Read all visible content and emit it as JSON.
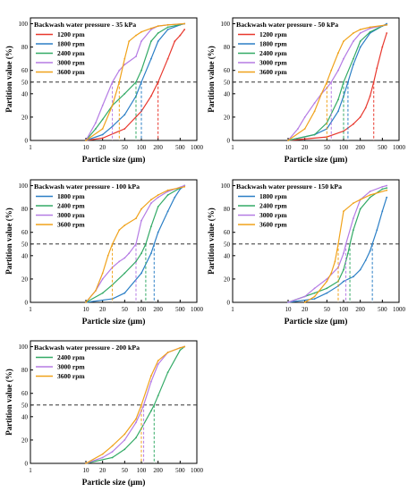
{
  "chart_data": [
    {
      "type": "line",
      "title": "Backwash water pressure - 35 kPa",
      "xlabel": "Particle size (μm)",
      "ylabel": "Partition value (%)",
      "xscale": "log",
      "xlim": [
        1,
        1000
      ],
      "ylim": [
        0,
        105
      ],
      "xticks": [
        "1",
        "10",
        "20",
        "50",
        "100",
        "200",
        "500",
        "1000"
      ],
      "yticks": [
        "0",
        "20",
        "40",
        "50",
        "60",
        "80",
        "100"
      ],
      "reference_line_y": 50,
      "legend": "top-left",
      "series": [
        {
          "name": "1200 rpm",
          "color": "#e8382e",
          "d50": 200,
          "x": [
            10,
            20,
            50,
            100,
            150,
            200,
            300,
            400,
            500,
            600
          ],
          "y": [
            0,
            2,
            10,
            25,
            38,
            50,
            70,
            85,
            90,
            95
          ]
        },
        {
          "name": "1800 rpm",
          "color": "#2b7fc6",
          "d50": 100,
          "x": [
            10,
            20,
            30,
            50,
            80,
            100,
            150,
            200,
            300,
            500,
            600
          ],
          "y": [
            0,
            5,
            12,
            22,
            38,
            50,
            70,
            85,
            95,
            99,
            100
          ]
        },
        {
          "name": "2400 rpm",
          "color": "#33aa66",
          "d50": 80,
          "x": [
            10,
            15,
            20,
            30,
            50,
            80,
            100,
            150,
            200,
            300,
            600
          ],
          "y": [
            0,
            10,
            18,
            30,
            40,
            50,
            60,
            85,
            92,
            97,
            100
          ]
        },
        {
          "name": "3000 rpm",
          "color": "#b57ce4",
          "d50": 30,
          "x": [
            10,
            15,
            20,
            30,
            40,
            50,
            80,
            100,
            150,
            200,
            300,
            600
          ],
          "y": [
            0,
            15,
            30,
            50,
            60,
            65,
            72,
            85,
            95,
            98,
            99,
            100
          ]
        },
        {
          "name": "3600 rpm",
          "color": "#f0a21a",
          "d50": 40,
          "x": [
            10,
            20,
            30,
            40,
            50,
            60,
            80,
            100,
            150,
            200,
            300,
            600
          ],
          "y": [
            0,
            10,
            30,
            50,
            70,
            85,
            90,
            93,
            96,
            98,
            99,
            100
          ]
        }
      ]
    },
    {
      "type": "line",
      "title": "Backwash water pressure - 50 kPa",
      "xlabel": "Particle size (μm)",
      "ylabel": "Partition value (%)",
      "xscale": "log",
      "xlim": [
        1,
        1000
      ],
      "ylim": [
        0,
        105
      ],
      "xticks": [
        "1",
        "10",
        "20",
        "50",
        "100",
        "200",
        "500",
        "1000"
      ],
      "yticks": [
        "0",
        "20",
        "40",
        "50",
        "60",
        "80",
        "100"
      ],
      "reference_line_y": 50,
      "legend": "top-left",
      "series": [
        {
          "name": "1200 rpm",
          "color": "#e8382e",
          "d50": 350,
          "x": [
            10,
            50,
            100,
            150,
            200,
            250,
            300,
            350,
            400,
            500,
            600
          ],
          "y": [
            0,
            3,
            8,
            14,
            20,
            28,
            38,
            50,
            62,
            80,
            92
          ]
        },
        {
          "name": "1800 rpm",
          "color": "#2b7fc6",
          "d50": 120,
          "x": [
            10,
            30,
            50,
            80,
            100,
            120,
            150,
            200,
            300,
            500,
            600
          ],
          "y": [
            0,
            5,
            10,
            25,
            38,
            50,
            65,
            80,
            92,
            98,
            100
          ]
        },
        {
          "name": "2400 rpm",
          "color": "#33aa66",
          "d50": 100,
          "x": [
            10,
            30,
            50,
            80,
            100,
            150,
            200,
            300,
            500,
            600
          ],
          "y": [
            0,
            5,
            15,
            35,
            50,
            70,
            85,
            93,
            98,
            99
          ]
        },
        {
          "name": "3000 rpm",
          "color": "#b57ce4",
          "d50": 60,
          "x": [
            10,
            15,
            20,
            30,
            40,
            50,
            60,
            80,
            100,
            150,
            200,
            300,
            600
          ],
          "y": [
            0,
            10,
            20,
            32,
            40,
            45,
            50,
            60,
            70,
            85,
            92,
            96,
            99
          ]
        },
        {
          "name": "3600 rpm",
          "color": "#f0a21a",
          "d50": 50,
          "x": [
            10,
            20,
            30,
            40,
            50,
            60,
            80,
            100,
            150,
            200,
            300,
            600
          ],
          "y": [
            0,
            10,
            25,
            40,
            50,
            60,
            75,
            85,
            92,
            95,
            97,
            99
          ]
        }
      ]
    },
    {
      "type": "line",
      "title": "Backwash water pressure - 100 kPa",
      "xlabel": "Particle size (μm)",
      "ylabel": "Partition value (%)",
      "xscale": "log",
      "xlim": [
        1,
        1000
      ],
      "ylim": [
        0,
        105
      ],
      "xticks": [
        "1",
        "10",
        "20",
        "50",
        "100",
        "200",
        "500",
        "1000"
      ],
      "yticks": [
        "0",
        "20",
        "40",
        "50",
        "60",
        "80",
        "100"
      ],
      "reference_line_y": 50,
      "legend": "top-left",
      "series": [
        {
          "name": "1800 rpm",
          "color": "#2b7fc6",
          "d50": 170,
          "x": [
            10,
            30,
            50,
            100,
            150,
            170,
            200,
            300,
            400,
            500,
            600
          ],
          "y": [
            0,
            3,
            8,
            25,
            42,
            50,
            60,
            78,
            90,
            97,
            100
          ]
        },
        {
          "name": "2400 rpm",
          "color": "#33aa66",
          "d50": 120,
          "x": [
            10,
            20,
            30,
            50,
            80,
            100,
            120,
            150,
            200,
            300,
            500,
            600
          ],
          "y": [
            0,
            8,
            15,
            25,
            35,
            42,
            50,
            65,
            82,
            92,
            98,
            100
          ]
        },
        {
          "name": "3000 rpm",
          "color": "#b57ce4",
          "d50": 80,
          "x": [
            10,
            15,
            20,
            30,
            40,
            50,
            60,
            80,
            100,
            150,
            200,
            300,
            600
          ],
          "y": [
            0,
            10,
            20,
            30,
            35,
            38,
            42,
            50,
            70,
            85,
            90,
            95,
            100
          ]
        },
        {
          "name": "3600 rpm",
          "color": "#f0a21a",
          "d50": 30,
          "x": [
            10,
            15,
            20,
            25,
            30,
            40,
            50,
            80,
            100,
            150,
            200,
            300,
            600
          ],
          "y": [
            0,
            10,
            25,
            40,
            50,
            62,
            66,
            72,
            80,
            88,
            92,
            96,
            99
          ]
        }
      ]
    },
    {
      "type": "line",
      "title": "Backwash water pressure - 150 kPa",
      "xlabel": "Particle size (μm)",
      "ylabel": "Partition value (%)",
      "xscale": "log",
      "xlim": [
        1,
        1000
      ],
      "ylim": [
        0,
        105
      ],
      "xticks": [
        "1",
        "10",
        "20",
        "50",
        "100",
        "200",
        "500",
        "1000"
      ],
      "yticks": [
        "0",
        "20",
        "40",
        "50",
        "60",
        "80",
        "100"
      ],
      "reference_line_y": 50,
      "legend": "top-left",
      "series": [
        {
          "name": "1800 rpm",
          "color": "#2b7fc6",
          "d50": 330,
          "x": [
            10,
            30,
            50,
            80,
            100,
            150,
            200,
            250,
            300,
            330,
            400,
            500,
            600
          ],
          "y": [
            0,
            3,
            8,
            14,
            18,
            22,
            28,
            36,
            44,
            50,
            62,
            78,
            90
          ]
        },
        {
          "name": "2400 rpm",
          "color": "#33aa66",
          "d50": 130,
          "x": [
            10,
            30,
            50,
            80,
            100,
            120,
            130,
            150,
            200,
            300,
            500,
            600
          ],
          "y": [
            0,
            8,
            12,
            18,
            28,
            42,
            50,
            62,
            80,
            90,
            97,
            98
          ]
        },
        {
          "name": "3000 rpm",
          "color": "#b57ce4",
          "d50": 110,
          "x": [
            10,
            20,
            30,
            50,
            80,
            100,
            110,
            150,
            200,
            300,
            500,
            600
          ],
          "y": [
            0,
            5,
            12,
            20,
            30,
            42,
            50,
            72,
            88,
            95,
            99,
            100
          ]
        },
        {
          "name": "3600 rpm",
          "color": "#f0a21a",
          "d50": 80,
          "x": [
            20,
            30,
            50,
            60,
            70,
            80,
            100,
            150,
            200,
            300,
            600
          ],
          "y": [
            0,
            5,
            18,
            25,
            35,
            50,
            78,
            85,
            88,
            92,
            96
          ]
        }
      ]
    },
    {
      "type": "line",
      "title": "Backwash water pressure - 200 kPa",
      "xlabel": "Particle size (μm)",
      "ylabel": "Partition value (%)",
      "xscale": "log",
      "xlim": [
        1,
        1000
      ],
      "ylim": [
        0,
        105
      ],
      "xticks": [
        "1",
        "10",
        "20",
        "50",
        "100",
        "200",
        "500",
        "1000"
      ],
      "yticks": [
        "0",
        "20",
        "40",
        "50",
        "60",
        "80",
        "100"
      ],
      "reference_line_y": 50,
      "legend": "top-left",
      "series": [
        {
          "name": "2400 rpm",
          "color": "#33aa66",
          "d50": 170,
          "x": [
            10,
            30,
            50,
            80,
            100,
            150,
            170,
            200,
            300,
            500,
            600
          ],
          "y": [
            0,
            5,
            12,
            22,
            30,
            45,
            50,
            58,
            78,
            97,
            100
          ]
        },
        {
          "name": "3000 rpm",
          "color": "#b57ce4",
          "d50": 110,
          "x": [
            10,
            20,
            30,
            50,
            80,
            100,
            110,
            150,
            200,
            300,
            500,
            600
          ],
          "y": [
            0,
            5,
            10,
            20,
            35,
            45,
            50,
            70,
            85,
            95,
            99,
            100
          ]
        },
        {
          "name": "3600 rpm",
          "color": "#f0a21a",
          "d50": 100,
          "x": [
            10,
            20,
            30,
            50,
            80,
            100,
            150,
            200,
            300,
            500,
            600
          ],
          "y": [
            0,
            8,
            15,
            25,
            38,
            50,
            75,
            88,
            95,
            99,
            100
          ]
        }
      ]
    }
  ]
}
